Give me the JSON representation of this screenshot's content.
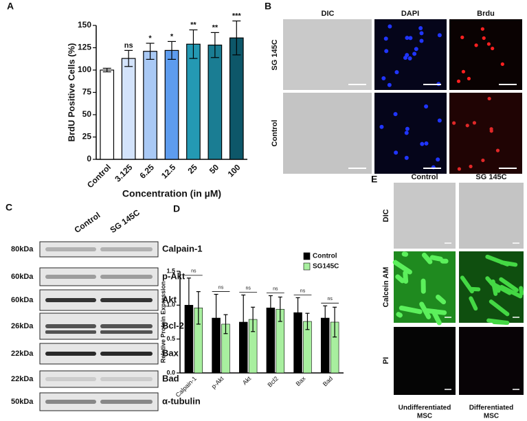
{
  "panels": {
    "a": "A",
    "b": "B",
    "c": "C",
    "d": "D",
    "e": "E"
  },
  "chart_data": [
    {
      "type": "bar",
      "categories": [
        "Control",
        "3.125",
        "6.25",
        "12.5",
        "25",
        "50",
        "100"
      ],
      "values": [
        100,
        113,
        121,
        122,
        129,
        128,
        136
      ],
      "errors": [
        2,
        9,
        9,
        10,
        16,
        14,
        19
      ],
      "colors": [
        "#ffffff",
        "#d3e3fb",
        "#a9c9f5",
        "#5d9cef",
        "#2499b3",
        "#1a7d93",
        "#0d5769"
      ],
      "annotations": [
        null,
        "ns",
        "*",
        "*",
        "**",
        "**",
        "***"
      ],
      "ylim": [
        0,
        150
      ],
      "yticks": [
        0,
        25,
        50,
        75,
        100,
        125,
        150
      ],
      "ylabel": "BrdU Positive Cells (%)",
      "xlabel": "Concentration (in µM)"
    },
    {
      "type": "grouped_bar",
      "categories": [
        "Calpain-1",
        "p-Akt",
        "Akt",
        "Bcl2",
        "Bax",
        "Bad"
      ],
      "series": [
        {
          "name": "Control",
          "color": "#000000",
          "values": [
            1.0,
            0.81,
            0.75,
            0.96,
            0.89,
            0.81
          ],
          "errors": [
            0.4,
            0.35,
            0.4,
            0.18,
            0.22,
            0.18
          ]
        },
        {
          "name": "SG145C",
          "color": "#a8ef9f",
          "values": [
            0.96,
            0.72,
            0.79,
            0.94,
            0.76,
            0.75
          ],
          "errors": [
            0.24,
            0.14,
            0.18,
            0.18,
            0.12,
            0.22
          ]
        }
      ],
      "annotations": [
        "ns",
        "ns",
        "ns",
        "ns",
        "ns",
        "ns"
      ],
      "ylim": [
        0,
        1.5
      ],
      "yticks": [
        {
          "value": 0,
          "label": "0.0"
        },
        0.5,
        {
          "value": 1,
          "label": "1.0"
        },
        1.5
      ],
      "ylabel": "Relative Protein Expression",
      "legend": "upper right"
    }
  ],
  "microscopy_b": {
    "columns": [
      "DIC",
      "DAPI",
      "Brdu"
    ],
    "rows": [
      "SG 145C",
      "Control"
    ]
  },
  "western_blot": {
    "columns": [
      "Control",
      "SG 145C"
    ],
    "bands": [
      {
        "weight": "80kDa",
        "protein": "Calpain-1"
      },
      {
        "weight": "60kDa",
        "protein": "p-Akt"
      },
      {
        "weight": "60kDa",
        "protein": "Akt"
      },
      {
        "weight": "26kDa",
        "protein": "Bcl-2"
      },
      {
        "weight": "22kDa",
        "protein": "Bax"
      },
      {
        "weight": "22kDa",
        "protein": "Bad"
      },
      {
        "weight": "50kDa",
        "protein": "α-tubulin"
      }
    ]
  },
  "microscopy_e": {
    "columns": [
      "Control",
      "SG 145C"
    ],
    "rows": [
      "DIC",
      "Calcein AM",
      "PI"
    ],
    "groups": [
      [
        "Undifferentiated",
        "MSC"
      ],
      [
        "Differentiated",
        "MSC"
      ]
    ]
  }
}
